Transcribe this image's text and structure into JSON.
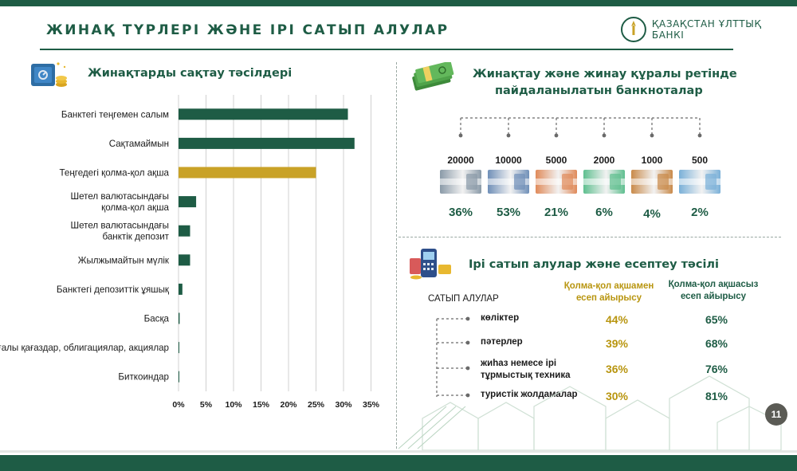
{
  "page": {
    "title": "ЖИНАҚ ТҮРЛЕРІ ЖӘНЕ ІРІ САТЫП АЛУЛАР",
    "brand": "ҚАЗАҚСТАН ҰЛТТЫҚ БАНКІ",
    "page_number": "11"
  },
  "colors": {
    "primary_green": "#1e5c45",
    "gold": "#c9a227",
    "gold_text": "#b8950f"
  },
  "savings_section": {
    "title": "Жинақтарды сақтау тәсілдері",
    "icon": "safe-with-coins-icon"
  },
  "banknote_section": {
    "title_line1": "Жинақтау және жинау құралы ретінде",
    "title_line2": "пайдаланылатын банкноталар",
    "icon": "money-stack-icon",
    "notes": [
      {
        "denomination": "20000",
        "share": "36%",
        "color": "#8a9aa8"
      },
      {
        "denomination": "10000",
        "share": "53%",
        "color": "#6f8fb8"
      },
      {
        "denomination": "5000",
        "share": "21%",
        "color": "#e08a5a"
      },
      {
        "denomination": "2000",
        "share": "6%",
        "color": "#5fbf8f"
      },
      {
        "denomination": "1000",
        "share": "4%",
        "color": "#c98a4a"
      },
      {
        "denomination": "500",
        "share": "2%",
        "color": "#7ab0d8"
      }
    ]
  },
  "purchases_section": {
    "title": "Ірі сатып алулар және есептеу тәсілі",
    "icon": "payment-terminal-icon",
    "purchases_header": "САТЫП АЛУЛАР",
    "cash_header_line1": "Қолма-қол ақшамен",
    "cash_header_line2": "есеп айырысу",
    "noncash_header_line1": "Қолма-қол ақшасыз",
    "noncash_header_line2": "есеп айырысу",
    "rows": [
      {
        "label_line1": "көліктер",
        "label_line2": "",
        "cash": "44%",
        "noncash": "65%"
      },
      {
        "label_line1": "пәтерлер",
        "label_line2": "",
        "cash": "39%",
        "noncash": "68%"
      },
      {
        "label_line1": "жиһаз немесе ірі",
        "label_line2": "тұрмыстық техника",
        "cash": "36%",
        "noncash": "76%"
      },
      {
        "label_line1": "туристік жолдамалар",
        "label_line2": "",
        "cash": "30%",
        "noncash": "81%"
      }
    ]
  },
  "chart_data": {
    "type": "bar",
    "orientation": "horizontal",
    "title": "Жинақтарды сақтау тәсілдері",
    "categories": [
      [
        "Банктегі теңгемен салым"
      ],
      [
        "Сақтамаймын"
      ],
      [
        "Теңгедегі қолма-қол ақша"
      ],
      [
        "Шетел валютасындағы",
        "қолма-қол ақша"
      ],
      [
        "Шетел валютасындағы",
        "банктік депозит"
      ],
      [
        "Жылжымайтын мүлік"
      ],
      [
        "Банктегі депозиттік ұяшық"
      ],
      [
        "Басқа"
      ],
      [
        "Бағалы қағаздар, облигациялар, акциялар"
      ],
      [
        "Биткоиндар"
      ]
    ],
    "values": [
      30.8,
      32.0,
      25.0,
      3.2,
      2.1,
      2.1,
      0.7,
      0.2,
      0.1,
      0.1
    ],
    "highlight_index": 2,
    "bar_color": "#1e5c45",
    "highlight_color": "#c9a227",
    "xlim": [
      0,
      35
    ],
    "xticks": [
      "0%",
      "5%",
      "10%",
      "15%",
      "20%",
      "25%",
      "30%",
      "35%"
    ],
    "xtick_values": [
      0,
      5,
      10,
      15,
      20,
      25,
      30,
      35
    ],
    "grid": "vertical",
    "legend": "none"
  }
}
